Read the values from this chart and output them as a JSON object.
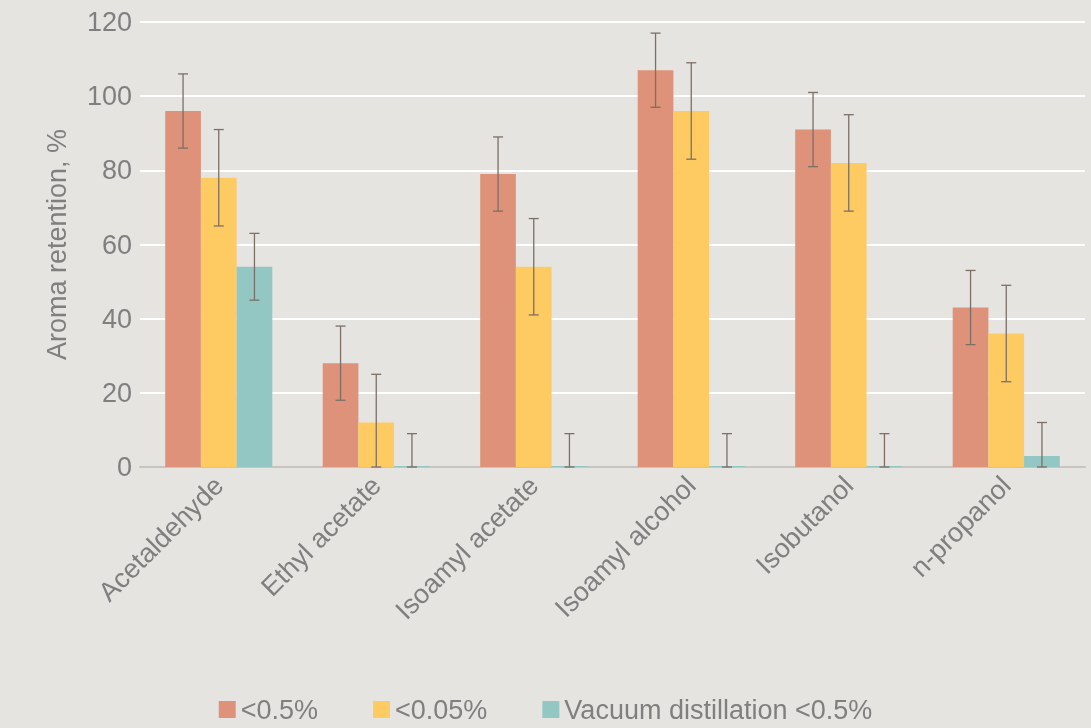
{
  "chart_data": {
    "type": "bar",
    "ylabel": "Aroma retention, %",
    "categories": [
      "Acetaldehyde",
      "Ethyl acetate",
      "Isoamyl acetate",
      "Isoamyl alcohol",
      "Isobutanol",
      "n-propanol"
    ],
    "series": [
      {
        "name": "<0.5%",
        "color": "#de9279",
        "values": [
          96,
          28,
          79,
          107,
          91,
          43
        ],
        "errors": [
          [
            86,
            106
          ],
          [
            18,
            38
          ],
          [
            69,
            89
          ],
          [
            97,
            117
          ],
          [
            81,
            101
          ],
          [
            33,
            53
          ]
        ]
      },
      {
        "name": "<0.05%",
        "color": "#fecb63",
        "values": [
          78,
          12,
          54,
          96,
          82,
          36
        ],
        "errors": [
          [
            65,
            91
          ],
          [
            0,
            25
          ],
          [
            41,
            67
          ],
          [
            83,
            109
          ],
          [
            69,
            95
          ],
          [
            23,
            49
          ]
        ]
      },
      {
        "name": "Vacuum distillation <0.5%",
        "color": "#92c7c3",
        "values": [
          54,
          0,
          0,
          0,
          0,
          3
        ],
        "errors": [
          [
            45,
            63
          ],
          [
            0,
            9
          ],
          [
            0,
            9
          ],
          [
            0,
            9
          ],
          [
            0,
            9
          ],
          [
            0,
            12
          ]
        ]
      }
    ],
    "ylim": [
      0,
      120
    ],
    "yticks": [
      0,
      20,
      40,
      60,
      80,
      100,
      120
    ],
    "grid": "y",
    "legend": "bottom"
  }
}
